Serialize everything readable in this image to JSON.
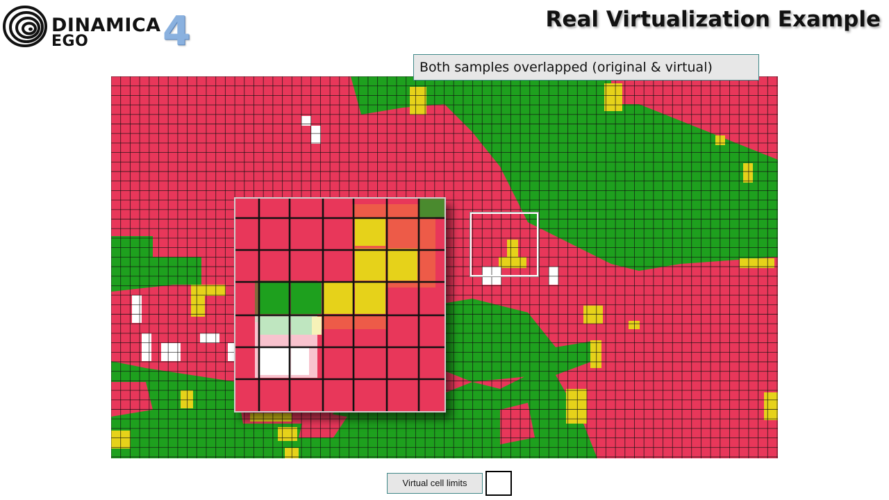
{
  "brand": {
    "name_line1": "DINAMICA",
    "name_line2": "EGO",
    "version": "4",
    "accent": "#8ab1df"
  },
  "slide": {
    "title": "Real Virtualization Example"
  },
  "callout": {
    "text": "Both samples overlapped (original & virtual)"
  },
  "legend": {
    "label": "Virtual cell limits"
  },
  "colors": {
    "land_red": "#e8375a",
    "land_green": "#1ea01e",
    "land_yellow": "#e6d21a",
    "land_white": "#ffffff",
    "grid": "#111111"
  }
}
